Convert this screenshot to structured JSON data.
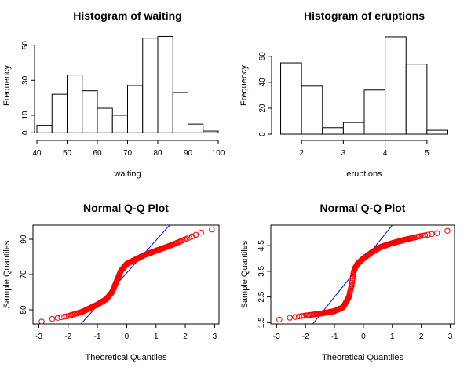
{
  "chart_data": [
    {
      "type": "bar",
      "title": "Histogram of waiting",
      "xlabel": "waiting",
      "ylabel": "Frequency",
      "bin_edges": [
        40,
        45,
        50,
        55,
        60,
        65,
        70,
        75,
        80,
        85,
        90,
        95,
        100
      ],
      "values": [
        4,
        22,
        33,
        24,
        14,
        10,
        27,
        54,
        55,
        23,
        5,
        1
      ],
      "xlim": [
        40,
        100
      ],
      "ylim": [
        0,
        55
      ],
      "xticks": [
        40,
        50,
        60,
        70,
        80,
        90,
        100
      ],
      "yticks": [
        0,
        10,
        30,
        50
      ],
      "grid": false,
      "colors": {
        "bar_fill": "#ffffff",
        "bar_stroke": "#000000"
      }
    },
    {
      "type": "bar",
      "title": "Histogram of eruptions",
      "xlabel": "eruptions",
      "ylabel": "Frequency",
      "bin_edges": [
        1.5,
        2.0,
        2.5,
        3.0,
        3.5,
        4.0,
        4.5,
        5.0,
        5.5
      ],
      "values": [
        55,
        37,
        5,
        9,
        34,
        75,
        54,
        3
      ],
      "xlim": [
        1.5,
        5.5
      ],
      "ylim": [
        0,
        75
      ],
      "xticks": [
        2,
        3,
        4,
        5
      ],
      "yticks": [
        0,
        20,
        40,
        60
      ],
      "grid": false,
      "colors": {
        "bar_fill": "#ffffff",
        "bar_stroke": "#000000"
      }
    },
    {
      "type": "scatter",
      "title": "Normal Q-Q Plot",
      "xlabel": "Theoretical Quantiles",
      "ylabel": "Sample Quantiles",
      "xlim": [
        -3.2,
        3.2
      ],
      "ylim": [
        42,
        98
      ],
      "xticks": [
        -3,
        -2,
        -1,
        0,
        1,
        2,
        3
      ],
      "yticks": [
        50,
        70,
        90
      ],
      "qq_anchors_x": [
        -3.0,
        -2.5,
        -2.0,
        -1.5,
        -1.0,
        -0.7,
        -0.5,
        -0.4,
        -0.3,
        -0.2,
        0.0,
        0.3,
        0.6,
        1.0,
        1.5,
        2.0,
        2.5,
        3.0
      ],
      "qq_anchors_y": [
        43,
        45,
        46.5,
        49,
        53,
        56,
        60,
        64,
        68,
        72,
        76,
        78.5,
        81,
        83.5,
        86.5,
        90,
        93.5,
        96
      ],
      "qq_line": {
        "intercept": 70.9,
        "slope": 18.5
      },
      "grid": false,
      "colors": {
        "points": "#ff0000",
        "line": "#0000ff"
      }
    },
    {
      "type": "scatter",
      "title": "Normal Q-Q Plot",
      "xlabel": "Theoretical Quantiles",
      "ylabel": "Sample Quantiles",
      "xlim": [
        -3.2,
        3.2
      ],
      "ylim": [
        1.45,
        5.3
      ],
      "xticks": [
        -3,
        -2,
        -1,
        0,
        1,
        2,
        3
      ],
      "yticks": [
        1.5,
        2.5,
        3.5,
        4.5
      ],
      "ytick_labels": [
        "1.5",
        "2.5",
        "3.5",
        "4.5"
      ],
      "qq_anchors_x": [
        -3.0,
        -2.5,
        -2.0,
        -1.5,
        -1.0,
        -0.7,
        -0.5,
        -0.4,
        -0.35,
        -0.3,
        -0.2,
        0.0,
        0.3,
        0.6,
        1.0,
        1.5,
        2.0,
        2.5,
        3.0
      ],
      "qq_anchors_y": [
        1.6,
        1.7,
        1.78,
        1.85,
        1.95,
        2.1,
        2.5,
        3.0,
        3.4,
        3.6,
        3.8,
        4.0,
        4.25,
        4.45,
        4.6,
        4.75,
        4.88,
        4.98,
        5.1
      ],
      "qq_line": {
        "intercept": 3.9,
        "slope": 1.4
      },
      "grid": false,
      "colors": {
        "points": "#ff0000",
        "line": "#0000ff"
      }
    }
  ]
}
